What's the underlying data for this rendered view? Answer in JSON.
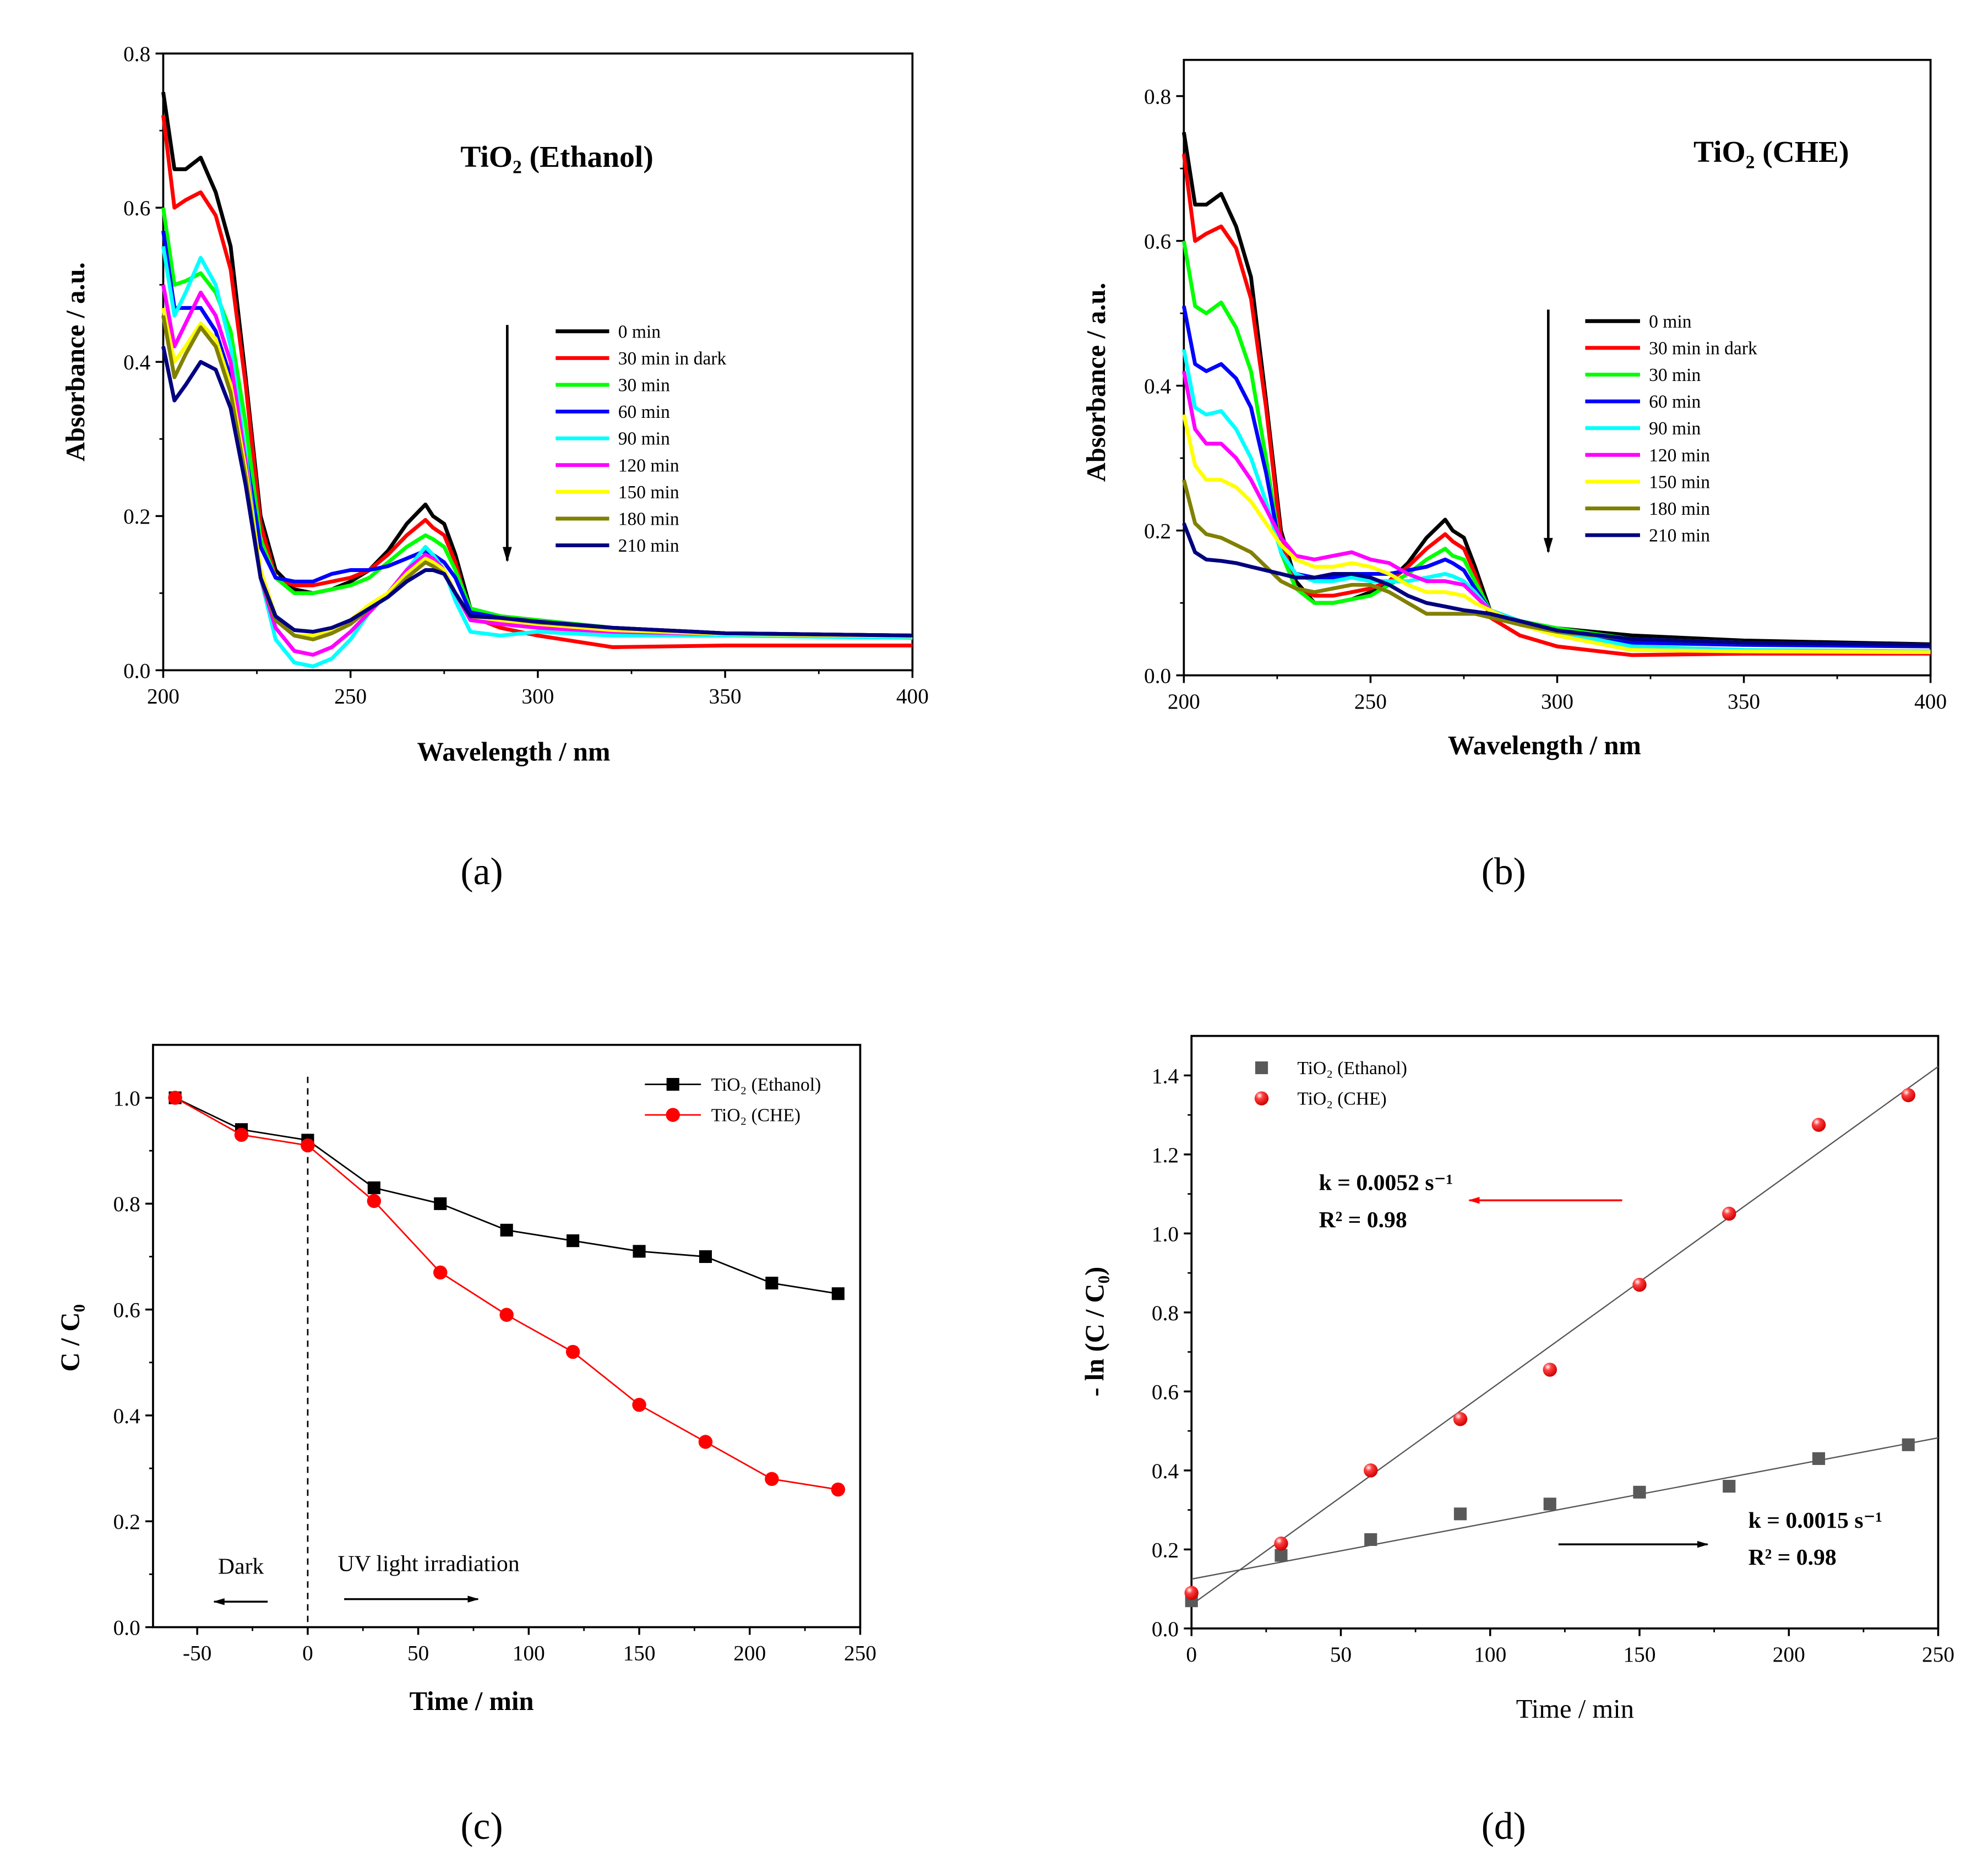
{
  "panel_labels": [
    "(a)",
    "(b)",
    "(c)",
    "(d)"
  ],
  "chart_data": [
    {
      "id": "a",
      "type": "line",
      "title": "TiO₂ (Ethanol)",
      "xlabel": "Wavelength / nm",
      "ylabel": "Absorbance / a.u.",
      "xlim": [
        200,
        400
      ],
      "ylim": [
        0,
        0.8
      ],
      "xticks": [
        200,
        250,
        300,
        350,
        400
      ],
      "yticks": [
        "0.0",
        "0.2",
        "0.4",
        "0.6",
        "0.8"
      ],
      "legend_placement": "center-right",
      "x": [
        200,
        203,
        206,
        210,
        214,
        218,
        222,
        226,
        230,
        235,
        240,
        245,
        250,
        255,
        260,
        265,
        270,
        272,
        275,
        278,
        282,
        290,
        300,
        320,
        350,
        400
      ],
      "series": [
        {
          "name": "0 min",
          "color": "#000000",
          "values": [
            0.75,
            0.65,
            0.65,
            0.665,
            0.62,
            0.55,
            0.38,
            0.2,
            0.13,
            0.105,
            0.1,
            0.105,
            0.115,
            0.13,
            0.155,
            0.19,
            0.215,
            0.2,
            0.19,
            0.15,
            0.08,
            0.07,
            0.065,
            0.055,
            0.048,
            0.045
          ]
        },
        {
          "name": "30 min in dark",
          "color": "#ff0000",
          "values": [
            0.72,
            0.6,
            0.61,
            0.62,
            0.59,
            0.52,
            0.37,
            0.19,
            0.12,
            0.11,
            0.11,
            0.115,
            0.12,
            0.13,
            0.15,
            0.175,
            0.195,
            0.185,
            0.175,
            0.14,
            0.07,
            0.055,
            0.045,
            0.03,
            0.032,
            0.032
          ]
        },
        {
          "name": "30 min",
          "color": "#00ff00",
          "values": [
            0.6,
            0.5,
            0.505,
            0.515,
            0.49,
            0.44,
            0.32,
            0.17,
            0.12,
            0.1,
            0.1,
            0.105,
            0.11,
            0.12,
            0.14,
            0.16,
            0.175,
            0.17,
            0.16,
            0.13,
            0.08,
            0.07,
            0.065,
            0.055,
            0.048,
            0.043
          ]
        },
        {
          "name": "60 min",
          "color": "#0000ff",
          "values": [
            0.57,
            0.47,
            0.47,
            0.47,
            0.44,
            0.38,
            0.28,
            0.16,
            0.12,
            0.115,
            0.115,
            0.125,
            0.13,
            0.13,
            0.135,
            0.145,
            0.155,
            0.15,
            0.14,
            0.12,
            0.075,
            0.068,
            0.063,
            0.055,
            0.048,
            0.045
          ]
        },
        {
          "name": "90 min",
          "color": "#00ffff",
          "values": [
            0.55,
            0.46,
            0.49,
            0.535,
            0.5,
            0.42,
            0.28,
            0.12,
            0.04,
            0.01,
            0.005,
            0.015,
            0.04,
            0.075,
            0.1,
            0.13,
            0.16,
            0.15,
            0.13,
            0.09,
            0.05,
            0.045,
            0.05,
            0.045,
            0.045,
            0.042
          ]
        },
        {
          "name": "120 min",
          "color": "#ff00ff",
          "values": [
            0.5,
            0.42,
            0.45,
            0.49,
            0.46,
            0.4,
            0.27,
            0.12,
            0.055,
            0.025,
            0.02,
            0.03,
            0.05,
            0.075,
            0.1,
            0.13,
            0.15,
            0.145,
            0.13,
            0.1,
            0.065,
            0.06,
            0.055,
            0.05,
            0.047,
            0.044
          ]
        },
        {
          "name": "150 min",
          "color": "#ffff00",
          "values": [
            0.47,
            0.4,
            0.42,
            0.45,
            0.43,
            0.37,
            0.26,
            0.13,
            0.07,
            0.045,
            0.045,
            0.05,
            0.065,
            0.085,
            0.1,
            0.125,
            0.145,
            0.14,
            0.13,
            0.1,
            0.07,
            0.065,
            0.06,
            0.052,
            0.047,
            0.044
          ]
        },
        {
          "name": "180 min",
          "color": "#808000",
          "values": [
            0.46,
            0.38,
            0.41,
            0.445,
            0.42,
            0.36,
            0.25,
            0.12,
            0.065,
            0.045,
            0.04,
            0.048,
            0.06,
            0.08,
            0.095,
            0.12,
            0.14,
            0.135,
            0.125,
            0.1,
            0.07,
            0.068,
            0.062,
            0.055,
            0.048,
            0.045
          ]
        },
        {
          "name": "210 min",
          "color": "#000080",
          "values": [
            0.42,
            0.35,
            0.37,
            0.4,
            0.39,
            0.34,
            0.24,
            0.12,
            0.07,
            0.052,
            0.05,
            0.055,
            0.065,
            0.08,
            0.095,
            0.115,
            0.13,
            0.13,
            0.125,
            0.1,
            0.07,
            0.068,
            0.063,
            0.055,
            0.048,
            0.045
          ]
        }
      ]
    },
    {
      "id": "b",
      "type": "line",
      "title": "TiO₂ (CHE)",
      "xlabel": "Wavelength / nm",
      "ylabel": "Absorbance / a.u.",
      "xlim": [
        200,
        400
      ],
      "ylim": [
        0,
        0.85
      ],
      "xticks": [
        200,
        250,
        300,
        350,
        400
      ],
      "yticks": [
        "0.0",
        "0.2",
        "0.4",
        "0.6",
        "0.8"
      ],
      "legend_placement": "center-right",
      "x": [
        200,
        203,
        206,
        210,
        214,
        218,
        222,
        226,
        230,
        235,
        240,
        245,
        250,
        255,
        260,
        265,
        270,
        272,
        275,
        278,
        282,
        290,
        300,
        320,
        350,
        400
      ],
      "series": [
        {
          "name": "0 min",
          "color": "#000000",
          "values": [
            0.75,
            0.65,
            0.65,
            0.665,
            0.62,
            0.55,
            0.38,
            0.2,
            0.13,
            0.1,
            0.1,
            0.105,
            0.115,
            0.13,
            0.155,
            0.19,
            0.215,
            0.2,
            0.19,
            0.15,
            0.09,
            0.075,
            0.065,
            0.055,
            0.048,
            0.043
          ]
        },
        {
          "name": "30 min in dark",
          "color": "#ff0000",
          "values": [
            0.72,
            0.6,
            0.61,
            0.62,
            0.59,
            0.52,
            0.37,
            0.19,
            0.12,
            0.11,
            0.11,
            0.115,
            0.12,
            0.13,
            0.15,
            0.175,
            0.195,
            0.185,
            0.175,
            0.14,
            0.08,
            0.055,
            0.04,
            0.028,
            0.03,
            0.03
          ]
        },
        {
          "name": "30 min",
          "color": "#00ff00",
          "values": [
            0.6,
            0.51,
            0.5,
            0.515,
            0.48,
            0.42,
            0.3,
            0.17,
            0.12,
            0.1,
            0.1,
            0.105,
            0.11,
            0.125,
            0.14,
            0.16,
            0.175,
            0.165,
            0.16,
            0.13,
            0.09,
            0.075,
            0.065,
            0.05,
            0.045,
            0.04
          ]
        },
        {
          "name": "60 min",
          "color": "#0000ff",
          "values": [
            0.51,
            0.43,
            0.42,
            0.43,
            0.41,
            0.37,
            0.28,
            0.17,
            0.14,
            0.135,
            0.135,
            0.14,
            0.14,
            0.14,
            0.145,
            0.15,
            0.16,
            0.155,
            0.145,
            0.12,
            0.09,
            0.075,
            0.06,
            0.045,
            0.042,
            0.04
          ]
        },
        {
          "name": "90 min",
          "color": "#00ffff",
          "values": [
            0.45,
            0.37,
            0.36,
            0.365,
            0.34,
            0.3,
            0.24,
            0.17,
            0.14,
            0.13,
            0.13,
            0.135,
            0.13,
            0.13,
            0.13,
            0.135,
            0.14,
            0.137,
            0.13,
            0.115,
            0.09,
            0.075,
            0.06,
            0.04,
            0.035,
            0.033
          ]
        },
        {
          "name": "120 min",
          "color": "#ff00ff",
          "values": [
            0.42,
            0.34,
            0.32,
            0.32,
            0.3,
            0.27,
            0.23,
            0.19,
            0.165,
            0.16,
            0.165,
            0.17,
            0.16,
            0.155,
            0.14,
            0.13,
            0.13,
            0.128,
            0.125,
            0.11,
            0.09,
            0.07,
            0.055,
            0.035,
            0.033,
            0.032
          ]
        },
        {
          "name": "150 min",
          "color": "#ffff00",
          "values": [
            0.36,
            0.29,
            0.27,
            0.27,
            0.26,
            0.24,
            0.21,
            0.18,
            0.16,
            0.15,
            0.15,
            0.155,
            0.15,
            0.14,
            0.125,
            0.115,
            0.115,
            0.113,
            0.11,
            0.1,
            0.09,
            0.07,
            0.055,
            0.035,
            0.033,
            0.032
          ]
        },
        {
          "name": "180 min",
          "color": "#808000",
          "values": [
            0.27,
            0.21,
            0.195,
            0.19,
            0.18,
            0.17,
            0.15,
            0.13,
            0.12,
            0.115,
            0.12,
            0.125,
            0.125,
            0.115,
            0.1,
            0.085,
            0.085,
            0.085,
            0.085,
            0.085,
            0.08,
            0.07,
            0.06,
            0.05,
            0.045,
            0.042
          ]
        },
        {
          "name": "210 min",
          "color": "#000080",
          "values": [
            0.21,
            0.17,
            0.16,
            0.158,
            0.155,
            0.15,
            0.145,
            0.14,
            0.135,
            0.135,
            0.14,
            0.14,
            0.135,
            0.125,
            0.11,
            0.1,
            0.095,
            0.093,
            0.09,
            0.088,
            0.085,
            0.075,
            0.062,
            0.05,
            0.045,
            0.042
          ]
        }
      ]
    },
    {
      "id": "c",
      "type": "line",
      "xlabel": "Time / min",
      "ylabel": "C / C₀",
      "xlim": [
        -70,
        250
      ],
      "ylim": [
        0,
        1.1
      ],
      "xticks": [
        -50,
        0,
        50,
        100,
        150,
        200,
        250
      ],
      "yticks": [
        "0.0",
        "0.2",
        "0.4",
        "0.6",
        "0.8",
        "1.0"
      ],
      "legend_placement": "top-right",
      "x": [
        -60,
        -30,
        0,
        30,
        60,
        90,
        120,
        150,
        180,
        210,
        240
      ],
      "series": [
        {
          "name": "TiO₂ (Ethanol)",
          "color": "#000000",
          "marker": "square",
          "values": [
            1.0,
            0.94,
            0.92,
            0.83,
            0.8,
            0.75,
            0.73,
            0.71,
            0.7,
            0.65,
            0.63
          ]
        },
        {
          "name": "TiO₂ (CHE)",
          "color": "#ff0000",
          "marker": "circle",
          "values": [
            1.0,
            0.93,
            0.91,
            0.805,
            0.67,
            0.59,
            0.52,
            0.42,
            0.35,
            0.28,
            0.26
          ]
        }
      ],
      "annotations": {
        "dark": "Dark",
        "uv": "UV light irradiation"
      }
    },
    {
      "id": "d",
      "type": "scatter",
      "xlabel": "Time / min",
      "ylabel": "- ln (C / C₀)",
      "xlim": [
        0,
        250
      ],
      "ylim": [
        0,
        1.5
      ],
      "xticks": [
        0,
        50,
        100,
        150,
        200,
        250
      ],
      "yticks": [
        "0.0",
        "0.2",
        "0.4",
        "0.6",
        "0.8",
        "1.0",
        "1.2",
        "1.4"
      ],
      "legend_placement": "top-left",
      "x": [
        0,
        30,
        60,
        90,
        120,
        150,
        180,
        210,
        240
      ],
      "series": [
        {
          "name": "TiO₂ (Ethanol)",
          "color": "#595959",
          "marker": "square",
          "values": [
            0.07,
            0.185,
            0.225,
            0.29,
            0.315,
            0.345,
            0.36,
            0.43,
            0.465
          ],
          "fit": {
            "intercept": 0.125,
            "slope": 0.00143
          }
        },
        {
          "name": "TiO₂ (CHE)",
          "color": "#ff0000",
          "marker": "circle",
          "values": [
            0.09,
            0.215,
            0.4,
            0.53,
            0.655,
            0.87,
            1.05,
            1.275,
            1.35
          ],
          "fit": {
            "intercept": 0.06,
            "slope": 0.00545
          }
        }
      ],
      "annotations": {
        "che_k": "k = 0.0052 s⁻¹",
        "che_r2": "R² = 0.98",
        "eth_k": "k = 0.0015 s⁻¹",
        "eth_r2": "R² = 0.98"
      }
    }
  ]
}
